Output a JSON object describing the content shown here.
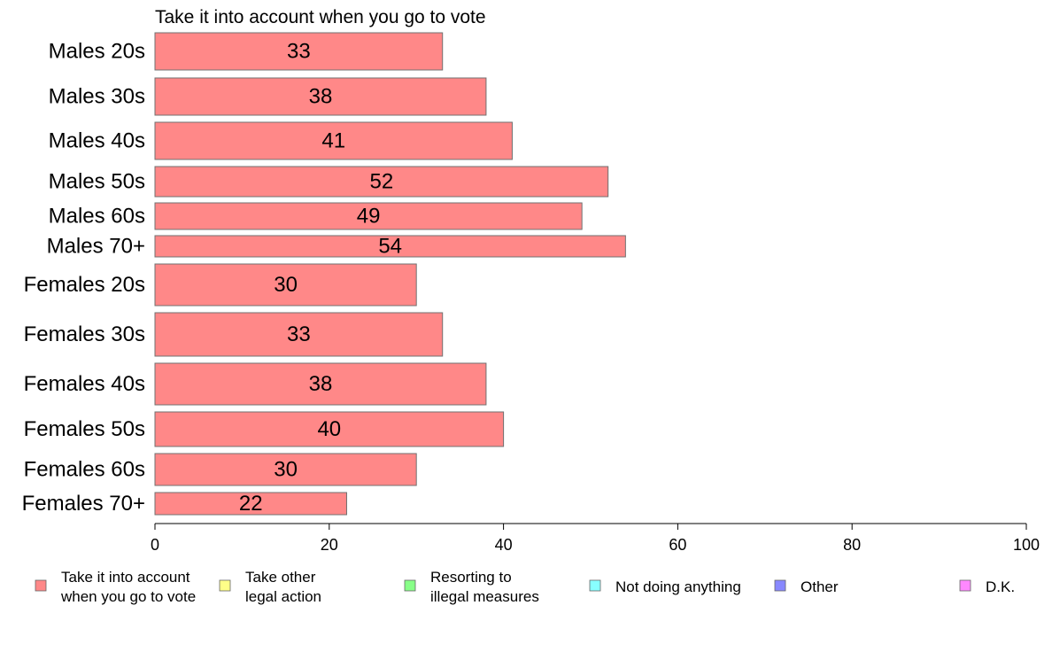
{
  "chart_data": {
    "type": "bar",
    "orientation": "horizontal",
    "title": "Take it into account when you go to vote",
    "categories": [
      "Males 20s",
      "Males 30s",
      "Males 40s",
      "Males 50s",
      "Males 60s",
      "Males 70+",
      "Females 20s",
      "Females 30s",
      "Females 40s",
      "Females 50s",
      "Females 60s",
      "Females 70+"
    ],
    "series": [
      {
        "name": "Take it into account when you go to vote",
        "color": "#ff8888",
        "values": [
          33,
          38,
          41,
          52,
          49,
          54,
          30,
          33,
          38,
          40,
          30,
          22
        ]
      }
    ],
    "xlim": [
      0,
      100
    ],
    "xticks": [
      0,
      20,
      40,
      60,
      80,
      100
    ],
    "grid": false,
    "legend_position": "bottom",
    "legend": [
      {
        "lines": [
          "Take it into account",
          "when you go to vote"
        ],
        "color": "#ff8888"
      },
      {
        "lines": [
          "Take other",
          "legal action"
        ],
        "color": "#ffff88"
      },
      {
        "lines": [
          "Resorting to",
          "illegal measures"
        ],
        "color": "#88ff88"
      },
      {
        "lines": [
          "Not doing anything"
        ],
        "color": "#88ffff"
      },
      {
        "lines": [
          "Other"
        ],
        "color": "#8888ff"
      },
      {
        "lines": [
          "D.K."
        ],
        "color": "#ff88ff"
      }
    ]
  }
}
